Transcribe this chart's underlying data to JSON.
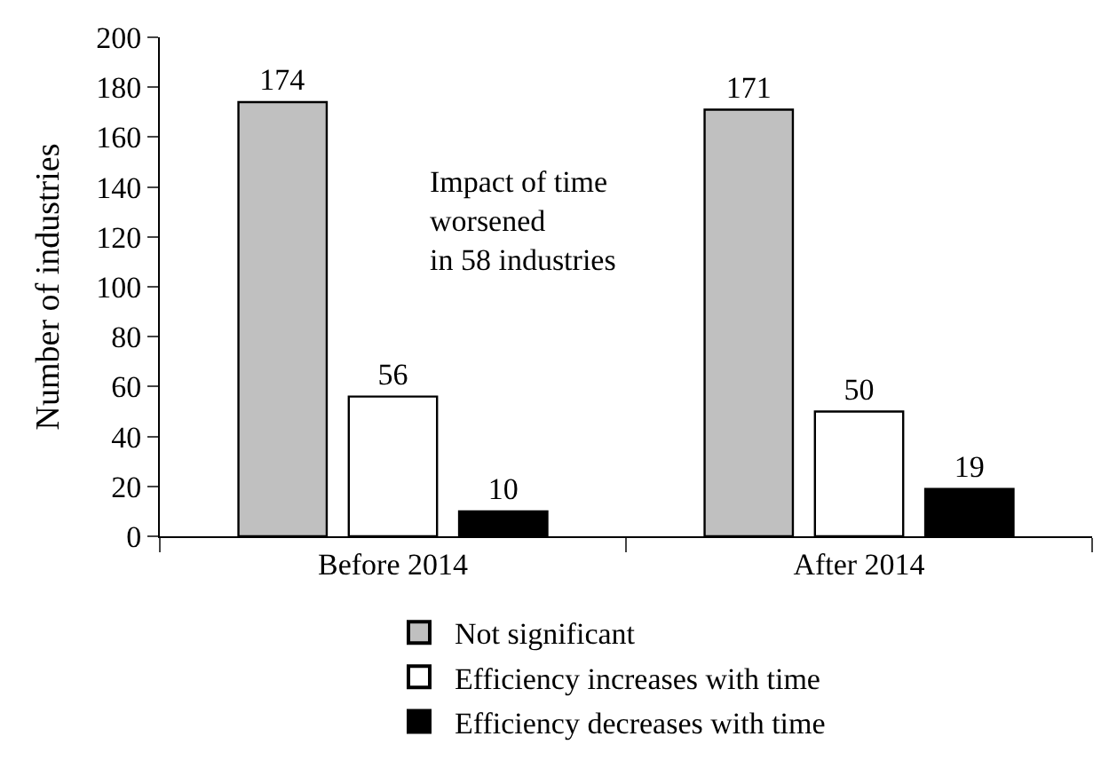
{
  "chart_data": {
    "type": "bar",
    "ylabel": "Number of industries",
    "categories": [
      "Before 2014",
      "After 2014"
    ],
    "series": [
      {
        "name": "Not significant",
        "color": "#c0c0c0",
        "values": [
          174,
          171
        ]
      },
      {
        "name": "Efficiency increases with time",
        "color": "#ffffff",
        "values": [
          56,
          50
        ]
      },
      {
        "name": "Efficiency decreases with time",
        "color": "#000000",
        "values": [
          10,
          19
        ]
      }
    ],
    "ylim": [
      0,
      200
    ],
    "yticks": [
      0,
      20,
      40,
      60,
      80,
      100,
      120,
      140,
      160,
      180,
      200
    ],
    "data_labels": true,
    "legend": "bottom",
    "annotations": [
      "Impact of time\nworsened\nin 58 industries"
    ]
  }
}
